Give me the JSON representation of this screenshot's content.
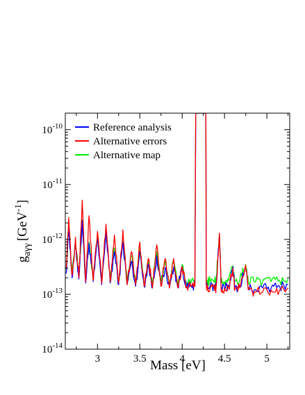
{
  "chart_data": {
    "type": "line",
    "xlabel": "Mass [eV]",
    "ylabel": "g_aγγ [GeV^-1]",
    "ylabel_parts": {
      "symbol": "g",
      "subscript": "aγγ",
      "unit_open": "[GeV",
      "exponent": "-1",
      "unit_close": "]"
    },
    "xlim": [
      2.62,
      5.27
    ],
    "ylim": [
      1e-14,
      2e-10
    ],
    "yscale": "log",
    "grid": false,
    "legend_position": "top-left",
    "xticks": [
      {
        "value": 3.0,
        "label": "3"
      },
      {
        "value": 3.5,
        "label": "3.5"
      },
      {
        "value": 4.0,
        "label": "4"
      },
      {
        "value": 4.5,
        "label": "4.5"
      },
      {
        "value": 5.0,
        "label": "5"
      }
    ],
    "yticks": [
      {
        "value": 1e-14,
        "base": "10",
        "exp": "-14"
      },
      {
        "value": 1e-13,
        "base": "10",
        "exp": "-13"
      },
      {
        "value": 1e-12,
        "base": "10",
        "exp": "-12"
      },
      {
        "value": 1e-11,
        "base": "10",
        "exp": "-11"
      },
      {
        "value": 1e-10,
        "base": "10",
        "exp": "-10"
      }
    ],
    "gap_region": {
      "x_start": 4.16,
      "x_end": 4.28
    },
    "series": [
      {
        "name": "Reference analysis",
        "color": "#0000ff",
        "points": [
          [
            2.63,
            2.4e-13
          ],
          [
            2.66,
            1.7e-12
          ],
          [
            2.7,
            2e-13
          ],
          [
            2.74,
            8e-13
          ],
          [
            2.78,
            1.9e-13
          ],
          [
            2.82,
            2.2e-12
          ],
          [
            2.86,
            1.6e-13
          ],
          [
            2.9,
            8.5e-13
          ],
          [
            2.95,
            1.7e-13
          ],
          [
            3.0,
            1e-12
          ],
          [
            3.05,
            1.5e-13
          ],
          [
            3.1,
            1.4e-12
          ],
          [
            3.15,
            1.6e-13
          ],
          [
            3.2,
            6e-13
          ],
          [
            3.25,
            1.5e-13
          ],
          [
            3.3,
            9e-13
          ],
          [
            3.35,
            1.5e-13
          ],
          [
            3.4,
            4e-13
          ],
          [
            3.45,
            1.4e-13
          ],
          [
            3.5,
            6e-13
          ],
          [
            3.55,
            1.4e-13
          ],
          [
            3.6,
            3.5e-13
          ],
          [
            3.65,
            1.3e-13
          ],
          [
            3.7,
            5e-13
          ],
          [
            3.75,
            1.4e-13
          ],
          [
            3.8,
            3e-13
          ],
          [
            3.85,
            1.3e-13
          ],
          [
            3.9,
            3.2e-13
          ],
          [
            3.95,
            1.3e-13
          ],
          [
            4.0,
            3.2e-13
          ],
          [
            4.05,
            1.3e-13
          ],
          [
            4.1,
            1.4e-13
          ],
          [
            4.15,
            1.4e-13
          ],
          [
            4.16,
            2e-10
          ],
          [
            4.28,
            2e-10
          ],
          [
            4.285,
            1.5e-13
          ],
          [
            4.33,
            1.4e-13
          ],
          [
            4.38,
            1.3e-13
          ],
          [
            4.4,
            1.4e-13
          ],
          [
            4.44,
            1.3e-12
          ],
          [
            4.46,
            1.3e-13
          ],
          [
            4.5,
            1.3e-13
          ],
          [
            4.55,
            1.4e-13
          ],
          [
            4.6,
            3.2e-13
          ],
          [
            4.62,
            1.3e-13
          ],
          [
            4.68,
            1.4e-13
          ],
          [
            4.75,
            3.2e-13
          ],
          [
            4.78,
            1.3e-13
          ],
          [
            4.85,
            1.2e-13
          ],
          [
            4.95,
            1.3e-13
          ],
          [
            5.05,
            1.3e-13
          ],
          [
            5.15,
            1.4e-13
          ],
          [
            5.25,
            1.5e-13
          ]
        ]
      },
      {
        "name": "Alternative errors",
        "color": "#ff0000",
        "points": [
          [
            2.63,
            3e-13
          ],
          [
            2.66,
            2.5e-12
          ],
          [
            2.7,
            2.2e-13
          ],
          [
            2.74,
            1.1e-12
          ],
          [
            2.78,
            2e-13
          ],
          [
            2.82,
            5.2e-12
          ],
          [
            2.86,
            1.7e-13
          ],
          [
            2.9,
            2.7e-12
          ],
          [
            2.95,
            1.8e-13
          ],
          [
            3.0,
            1.4e-12
          ],
          [
            3.05,
            1.6e-13
          ],
          [
            3.1,
            1.9e-12
          ],
          [
            3.15,
            1.7e-13
          ],
          [
            3.2,
            1.2e-12
          ],
          [
            3.25,
            1.6e-13
          ],
          [
            3.3,
            1.5e-12
          ],
          [
            3.35,
            1.5e-13
          ],
          [
            3.4,
            6e-13
          ],
          [
            3.45,
            1.5e-13
          ],
          [
            3.5,
            9e-13
          ],
          [
            3.55,
            1.4e-13
          ],
          [
            3.6,
            4.5e-13
          ],
          [
            3.65,
            1.3e-13
          ],
          [
            3.7,
            8e-13
          ],
          [
            3.75,
            1.4e-13
          ],
          [
            3.8,
            4.5e-13
          ],
          [
            3.85,
            1.3e-13
          ],
          [
            3.9,
            4.5e-13
          ],
          [
            3.95,
            1.3e-13
          ],
          [
            4.0,
            3.2e-13
          ],
          [
            4.05,
            1.3e-13
          ],
          [
            4.1,
            1.4e-13
          ],
          [
            4.15,
            1.4e-13
          ],
          [
            4.16,
            2e-10
          ],
          [
            4.28,
            2e-10
          ],
          [
            4.285,
            1.4e-13
          ],
          [
            4.33,
            1.3e-13
          ],
          [
            4.38,
            1.3e-13
          ],
          [
            4.4,
            1.3e-13
          ],
          [
            4.44,
            1.3e-12
          ],
          [
            4.46,
            1.2e-13
          ],
          [
            4.5,
            1.3e-13
          ],
          [
            4.55,
            1.3e-13
          ],
          [
            4.6,
            3e-13
          ],
          [
            4.62,
            1.2e-13
          ],
          [
            4.68,
            1.3e-13
          ],
          [
            4.75,
            3.4e-13
          ],
          [
            4.78,
            1.2e-13
          ],
          [
            4.85,
            1.1e-13
          ],
          [
            4.95,
            1.1e-13
          ],
          [
            5.05,
            1.2e-13
          ],
          [
            5.15,
            1.2e-13
          ],
          [
            5.25,
            1.3e-13
          ]
        ]
      },
      {
        "name": "Alternative map",
        "color": "#00ee00",
        "points": [
          [
            2.63,
            2.8e-13
          ],
          [
            2.66,
            1.8e-12
          ],
          [
            2.7,
            2.4e-13
          ],
          [
            2.74,
            9e-13
          ],
          [
            2.78,
            2.1e-13
          ],
          [
            2.82,
            2.3e-12
          ],
          [
            2.86,
            1.8e-13
          ],
          [
            2.9,
            9e-13
          ],
          [
            2.95,
            1.9e-13
          ],
          [
            3.0,
            1.1e-12
          ],
          [
            3.05,
            1.7e-13
          ],
          [
            3.1,
            1.5e-12
          ],
          [
            3.15,
            1.8e-13
          ],
          [
            3.2,
            7e-13
          ],
          [
            3.25,
            1.7e-13
          ],
          [
            3.3,
            1e-12
          ],
          [
            3.35,
            1.7e-13
          ],
          [
            3.4,
            5e-13
          ],
          [
            3.45,
            1.6e-13
          ],
          [
            3.5,
            7e-13
          ],
          [
            3.55,
            1.6e-13
          ],
          [
            3.6,
            4e-13
          ],
          [
            3.65,
            1.5e-13
          ],
          [
            3.7,
            6e-13
          ],
          [
            3.75,
            1.6e-13
          ],
          [
            3.8,
            4e-13
          ],
          [
            3.85,
            1.5e-13
          ],
          [
            3.9,
            4e-13
          ],
          [
            3.95,
            1.5e-13
          ],
          [
            4.0,
            3.5e-13
          ],
          [
            4.05,
            1.5e-13
          ],
          [
            4.1,
            1.6e-13
          ],
          [
            4.15,
            1.6e-13
          ],
          [
            4.16,
            2e-10
          ],
          [
            4.28,
            2e-10
          ],
          [
            4.285,
            1.7e-13
          ],
          [
            4.33,
            1.8e-13
          ],
          [
            4.38,
            1.7e-13
          ],
          [
            4.4,
            1.8e-13
          ],
          [
            4.44,
            1.3e-12
          ],
          [
            4.46,
            1.6e-13
          ],
          [
            4.5,
            1.7e-13
          ],
          [
            4.55,
            1.8e-13
          ],
          [
            4.6,
            3.3e-13
          ],
          [
            4.62,
            1.7e-13
          ],
          [
            4.68,
            1.8e-13
          ],
          [
            4.75,
            3.5e-13
          ],
          [
            4.78,
            1.7e-13
          ],
          [
            4.85,
            1.7e-13
          ],
          [
            4.95,
            1.7e-13
          ],
          [
            5.05,
            1.7e-13
          ],
          [
            5.15,
            1.8e-13
          ],
          [
            5.25,
            1.9e-13
          ]
        ]
      }
    ]
  }
}
